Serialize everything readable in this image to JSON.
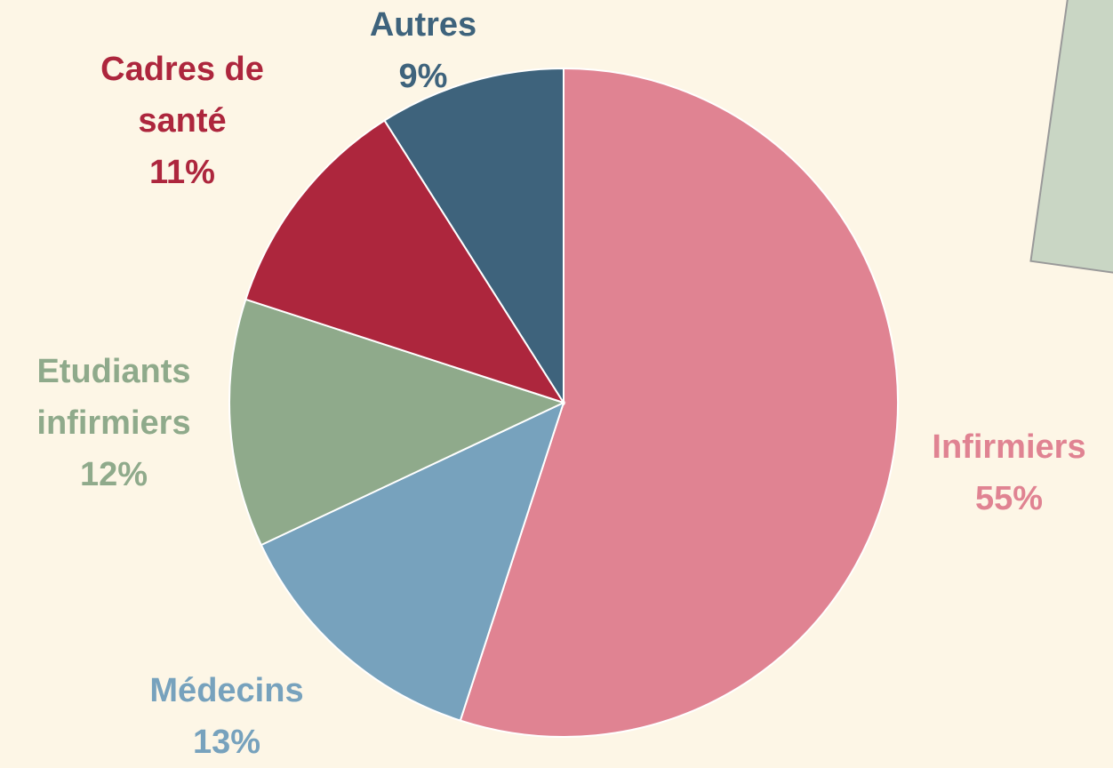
{
  "chart_data": {
    "type": "pie",
    "categories": [
      "Infirmiers",
      "Médecins",
      "Etudiants infirmiers",
      "Cadres de santé",
      "Autres"
    ],
    "values": [
      55,
      13,
      12,
      11,
      9
    ],
    "value_labels": [
      "55%",
      "13%",
      "12%",
      "11%",
      "9%"
    ],
    "colors": [
      "#e08392",
      "#77a2bd",
      "#8faa8b",
      "#ad263d",
      "#3e637c"
    ]
  }
}
